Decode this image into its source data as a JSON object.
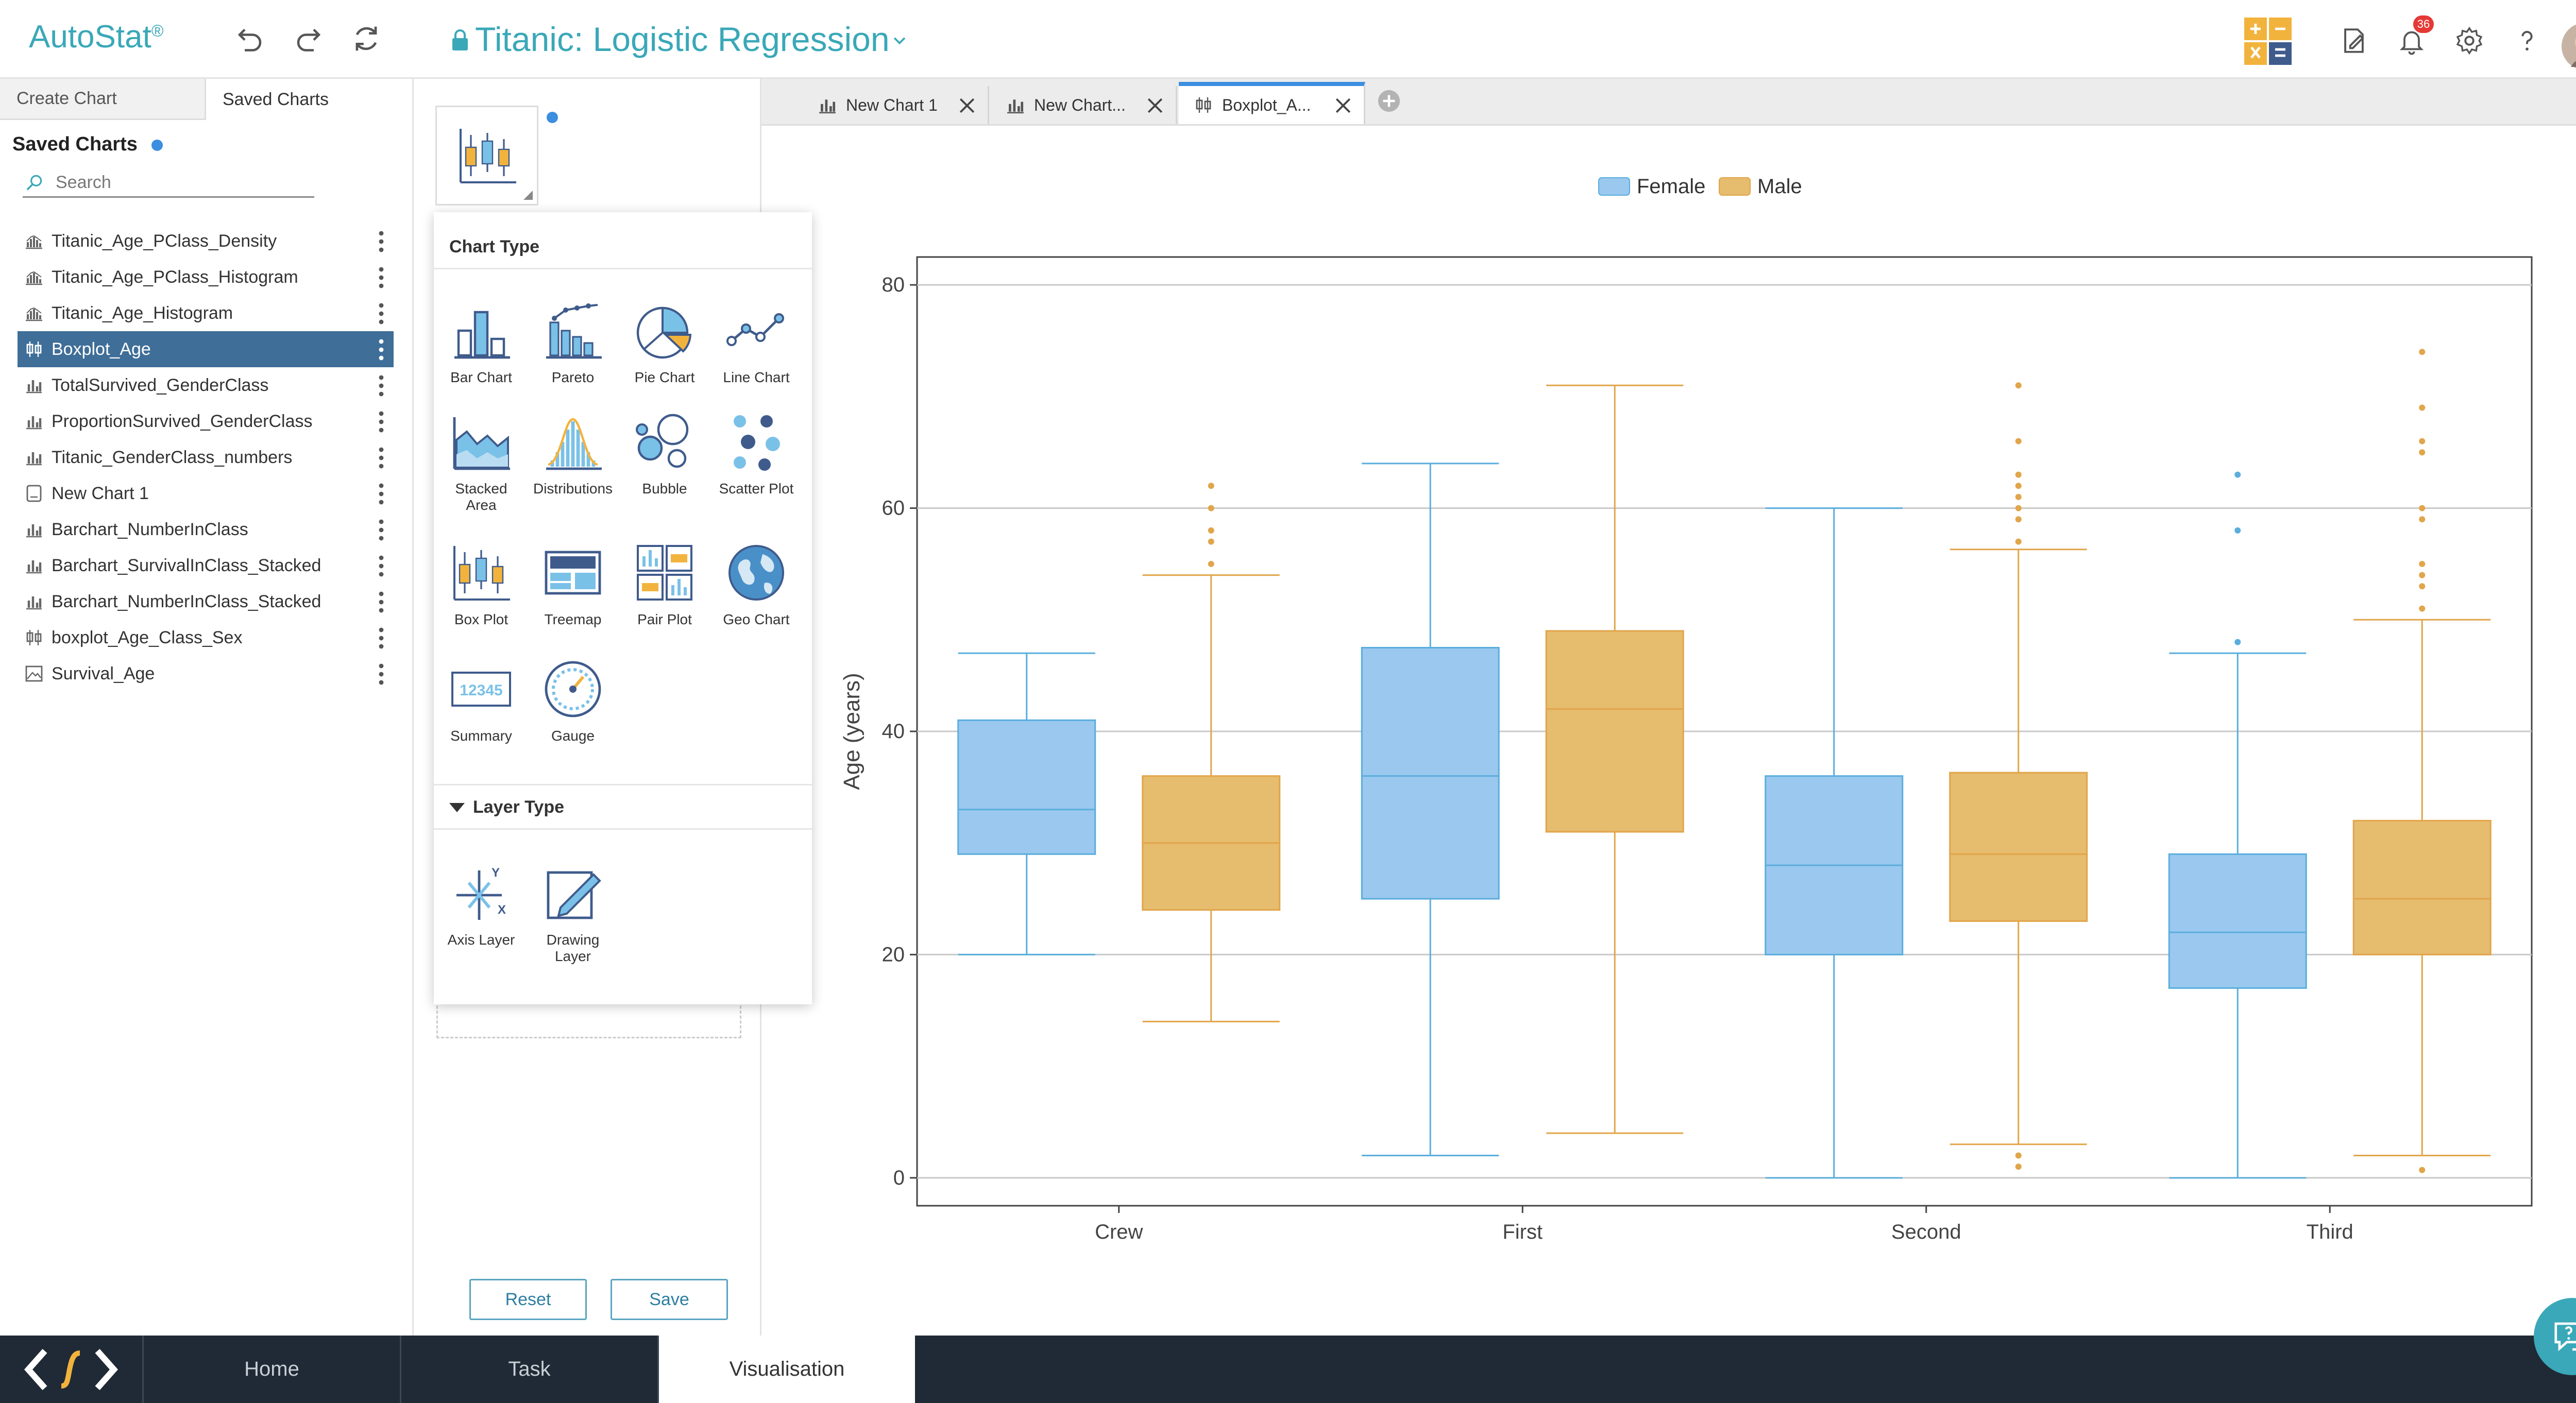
{
  "app": {
    "name": "AutoStat",
    "registered": "®",
    "doc_title": "Titanic: Logistic Regression",
    "notification_count": "36"
  },
  "left_panel": {
    "tabs": [
      "Create Chart",
      "Saved Charts"
    ],
    "active_tab": "Saved Charts",
    "heading": "Saved Charts",
    "search_placeholder": "Search",
    "items": [
      {
        "label": "Titanic_Age_PClass_Density",
        "icon": "histogram-icon"
      },
      {
        "label": "Titanic_Age_PClass_Histogram",
        "icon": "histogram-icon"
      },
      {
        "label": "Titanic_Age_Histogram",
        "icon": "histogram-icon"
      },
      {
        "label": "Boxplot_Age",
        "icon": "boxplot-icon",
        "selected": true
      },
      {
        "label": "TotalSurvived_GenderClass",
        "icon": "bar-chart-icon"
      },
      {
        "label": "ProportionSurvived_GenderClass",
        "icon": "bar-chart-icon"
      },
      {
        "label": "Titanic_GenderClass_numbers",
        "icon": "bar-chart-icon"
      },
      {
        "label": "New Chart 1",
        "icon": "blank-chart-icon"
      },
      {
        "label": "Barchart_NumberInClass",
        "icon": "bar-chart-icon"
      },
      {
        "label": "Barchart_SurvivalInClass_Stacked",
        "icon": "bar-chart-icon"
      },
      {
        "label": "Barchart_NumberInClass_Stacked",
        "icon": "bar-chart-icon"
      },
      {
        "label": "boxplot_Age_Class_Sex",
        "icon": "boxplot-icon"
      },
      {
        "label": "Survival_Age",
        "icon": "image-icon"
      }
    ]
  },
  "popup": {
    "chart_type_heading": "Chart Type",
    "chart_types": [
      {
        "label": "Bar Chart",
        "icon": "bar-chart-icon"
      },
      {
        "label": "Pareto",
        "icon": "pareto-icon"
      },
      {
        "label": "Pie Chart",
        "icon": "pie-chart-icon"
      },
      {
        "label": "Line Chart",
        "icon": "line-chart-icon"
      },
      {
        "label": "Stacked Area",
        "icon": "stacked-area-icon"
      },
      {
        "label": "Distributions",
        "icon": "distributions-icon"
      },
      {
        "label": "Bubble",
        "icon": "bubble-icon"
      },
      {
        "label": "Scatter Plot",
        "icon": "scatter-plot-icon"
      },
      {
        "label": "Box Plot",
        "icon": "box-plot-icon"
      },
      {
        "label": "Treemap",
        "icon": "treemap-icon"
      },
      {
        "label": "Pair Plot",
        "icon": "pair-plot-icon"
      },
      {
        "label": "Geo Chart",
        "icon": "geo-chart-icon"
      },
      {
        "label": "Summary",
        "icon": "summary-icon",
        "icon_text": "12345"
      },
      {
        "label": "Gauge",
        "icon": "gauge-icon"
      }
    ],
    "layer_type_heading": "Layer Type",
    "layer_types": [
      {
        "label": "Axis Layer",
        "icon": "axis-layer-icon"
      },
      {
        "label": "Drawing Layer",
        "icon": "drawing-layer-icon"
      }
    ]
  },
  "buttons": {
    "reset": "Reset",
    "save": "Save"
  },
  "chart_tabs": [
    {
      "label": "New Chart 1",
      "active": false
    },
    {
      "label": "New Chart...",
      "active": false
    },
    {
      "label": "Boxplot_A...",
      "active": true
    }
  ],
  "bottom_nav": {
    "tabs": [
      "Home",
      "Task",
      "Visualisation"
    ],
    "active": "Visualisation"
  },
  "colors": {
    "accent": "#3aa8b8",
    "female": "#9ac8ee",
    "female_stroke": "#5aaedd",
    "male": "#e6bc6f",
    "male_stroke": "#e1a54a",
    "selected_row": "#3f6e98",
    "bottom_bar": "#1f2a36"
  },
  "chart_data": {
    "type": "box",
    "categories": [
      "Crew",
      "First",
      "Second",
      "Third"
    ],
    "ylabel": "Age (years)",
    "xlabel": "",
    "ylim": [
      -2.5,
      82.5
    ],
    "yticks": [
      0,
      20,
      40,
      60,
      80
    ],
    "legend": {
      "position": "top-center",
      "entries": [
        "Female",
        "Male"
      ]
    },
    "series": [
      {
        "name": "Female",
        "boxes": [
          {
            "category": "Crew",
            "whisker_low": 20,
            "q1": 29,
            "median": 33,
            "q3": 41,
            "whisker_high": 47,
            "outliers": []
          },
          {
            "category": "First",
            "whisker_low": 2,
            "q1": 25,
            "median": 36,
            "q3": 47.5,
            "whisker_high": 64,
            "outliers": []
          },
          {
            "category": "Second",
            "whisker_low": 0,
            "q1": 20,
            "median": 28,
            "q3": 36,
            "whisker_high": 60,
            "outliers": []
          },
          {
            "category": "Third",
            "whisker_low": 0,
            "q1": 17,
            "median": 22,
            "q3": 29,
            "whisker_high": 47,
            "outliers": [
              48,
              58,
              63
            ]
          }
        ]
      },
      {
        "name": "Male",
        "boxes": [
          {
            "category": "Crew",
            "whisker_low": 14,
            "q1": 24,
            "median": 30,
            "q3": 36,
            "whisker_high": 54,
            "outliers": [
              55,
              57,
              58,
              60,
              62
            ]
          },
          {
            "category": "First",
            "whisker_low": 4,
            "q1": 31,
            "median": 42,
            "q3": 49,
            "whisker_high": 71,
            "outliers": []
          },
          {
            "category": "Second",
            "whisker_low": 3,
            "q1": 23,
            "median": 29,
            "q3": 36.3,
            "whisker_high": 56.3,
            "outliers": [
              1,
              2,
              57,
              59,
              60,
              61,
              62,
              63,
              66,
              71
            ]
          },
          {
            "category": "Third",
            "whisker_low": 2,
            "q1": 20,
            "median": 25,
            "q3": 32,
            "whisker_high": 50,
            "outliers": [
              0.7,
              51,
              53,
              54,
              55,
              59,
              60,
              65,
              66,
              69,
              74
            ]
          }
        ]
      }
    ]
  }
}
